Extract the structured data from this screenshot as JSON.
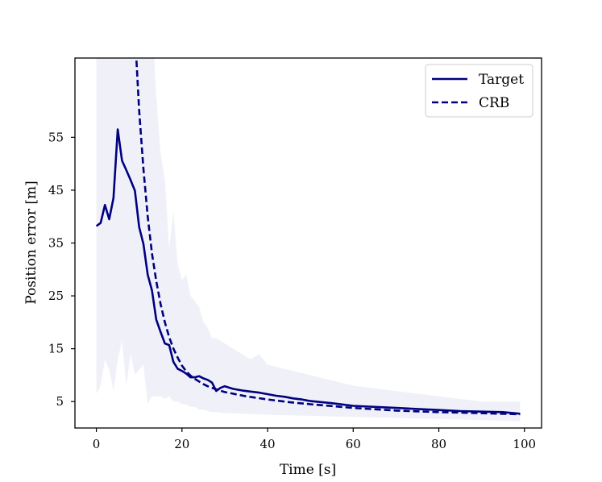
{
  "chart_data": {
    "type": "line",
    "title": "",
    "xlabel": "Time [s]",
    "ylabel": "Position error [m]",
    "xlim": [
      -5,
      104
    ],
    "ylim": [
      0,
      70
    ],
    "xticks": [
      0,
      20,
      40,
      60,
      80,
      100
    ],
    "yticks": [
      5,
      15,
      25,
      35,
      45,
      55
    ],
    "grid": false,
    "legend_position": "top-right",
    "colors": {
      "line": "#000080",
      "band": "#e6e8f4",
      "axes": "#000000"
    },
    "series": [
      {
        "name": "Target",
        "style": "solid",
        "x": [
          0,
          1,
          2,
          3,
          4,
          5,
          6,
          7,
          8,
          9,
          10,
          11,
          12,
          13,
          14,
          15,
          16,
          17,
          18,
          19,
          20,
          21,
          22,
          23,
          24,
          25,
          26,
          27,
          28,
          29,
          30,
          32,
          34,
          36,
          38,
          40,
          42,
          44,
          46,
          48,
          50,
          55,
          60,
          65,
          70,
          75,
          80,
          85,
          90,
          95,
          99
        ],
        "y": [
          38.2,
          38.8,
          42.2,
          39.5,
          43.5,
          56.5,
          50.6,
          48.8,
          46.9,
          44.9,
          38.0,
          34.8,
          29.0,
          26.0,
          20.5,
          18.2,
          16.0,
          15.7,
          12.5,
          11.2,
          10.8,
          10.3,
          9.6,
          9.6,
          9.8,
          9.4,
          9.1,
          8.6,
          7.0,
          7.6,
          7.9,
          7.4,
          7.1,
          6.9,
          6.7,
          6.4,
          6.1,
          5.9,
          5.6,
          5.4,
          5.1,
          4.7,
          4.2,
          4.0,
          3.8,
          3.6,
          3.4,
          3.2,
          3.1,
          3.0,
          2.7
        ]
      },
      {
        "name": "CRB",
        "style": "dashed",
        "x": [
          9,
          10,
          11,
          12,
          13,
          14,
          15,
          16,
          17,
          18,
          19,
          20,
          21,
          22,
          23,
          24,
          25,
          26,
          28,
          30,
          35,
          40,
          45,
          50,
          60,
          70,
          80,
          90,
          99
        ],
        "y": [
          75.0,
          60.0,
          49.0,
          40.0,
          33.0,
          27.8,
          23.5,
          20.0,
          17.2,
          15.0,
          13.3,
          11.8,
          10.7,
          9.9,
          9.3,
          8.8,
          8.3,
          7.9,
          7.3,
          6.8,
          6.0,
          5.4,
          4.9,
          4.5,
          3.8,
          3.3,
          3.0,
          2.8,
          2.6
        ]
      }
    ],
    "band": {
      "name": "spread",
      "x": [
        0,
        1,
        2,
        3,
        4,
        5,
        6,
        7,
        8,
        9,
        10,
        11,
        12,
        13,
        14,
        15,
        16,
        17,
        18,
        19,
        20,
        21,
        22,
        23,
        24,
        25,
        26,
        27,
        28,
        30,
        32,
        34,
        36,
        38,
        40,
        45,
        50,
        55,
        60,
        65,
        70,
        75,
        80,
        85,
        90,
        95,
        99
      ],
      "upper": [
        80,
        80,
        80,
        80,
        80,
        80,
        80,
        80,
        80,
        80,
        80,
        80,
        80,
        78,
        63,
        52,
        47,
        34,
        41,
        31,
        28,
        29,
        25,
        24,
        23,
        20,
        19,
        17,
        17,
        16,
        15,
        14,
        13,
        14,
        12,
        11,
        10,
        9.0,
        8.0,
        7.5,
        7.0,
        6.5,
        6.0,
        5.5,
        5.0,
        5.0,
        5.0
      ],
      "lower": [
        6.5,
        8.0,
        13.0,
        11.0,
        7.0,
        13.0,
        16.5,
        8.0,
        14.0,
        10.0,
        11.0,
        12.0,
        4.5,
        6.0,
        6.0,
        6.0,
        5.5,
        6.0,
        5.0,
        5.0,
        4.5,
        4.5,
        4.0,
        4.0,
        3.5,
        3.5,
        3.2,
        3.0,
        3.0,
        2.8,
        2.8,
        2.7,
        2.6,
        2.6,
        2.5,
        2.4,
        2.3,
        2.2,
        2.1,
        2.0,
        1.9,
        1.8,
        1.7,
        1.6,
        1.5,
        1.4,
        1.3
      ]
    },
    "legend": [
      {
        "label": "Target",
        "style": "solid"
      },
      {
        "label": "CRB",
        "style": "dashed"
      }
    ]
  }
}
